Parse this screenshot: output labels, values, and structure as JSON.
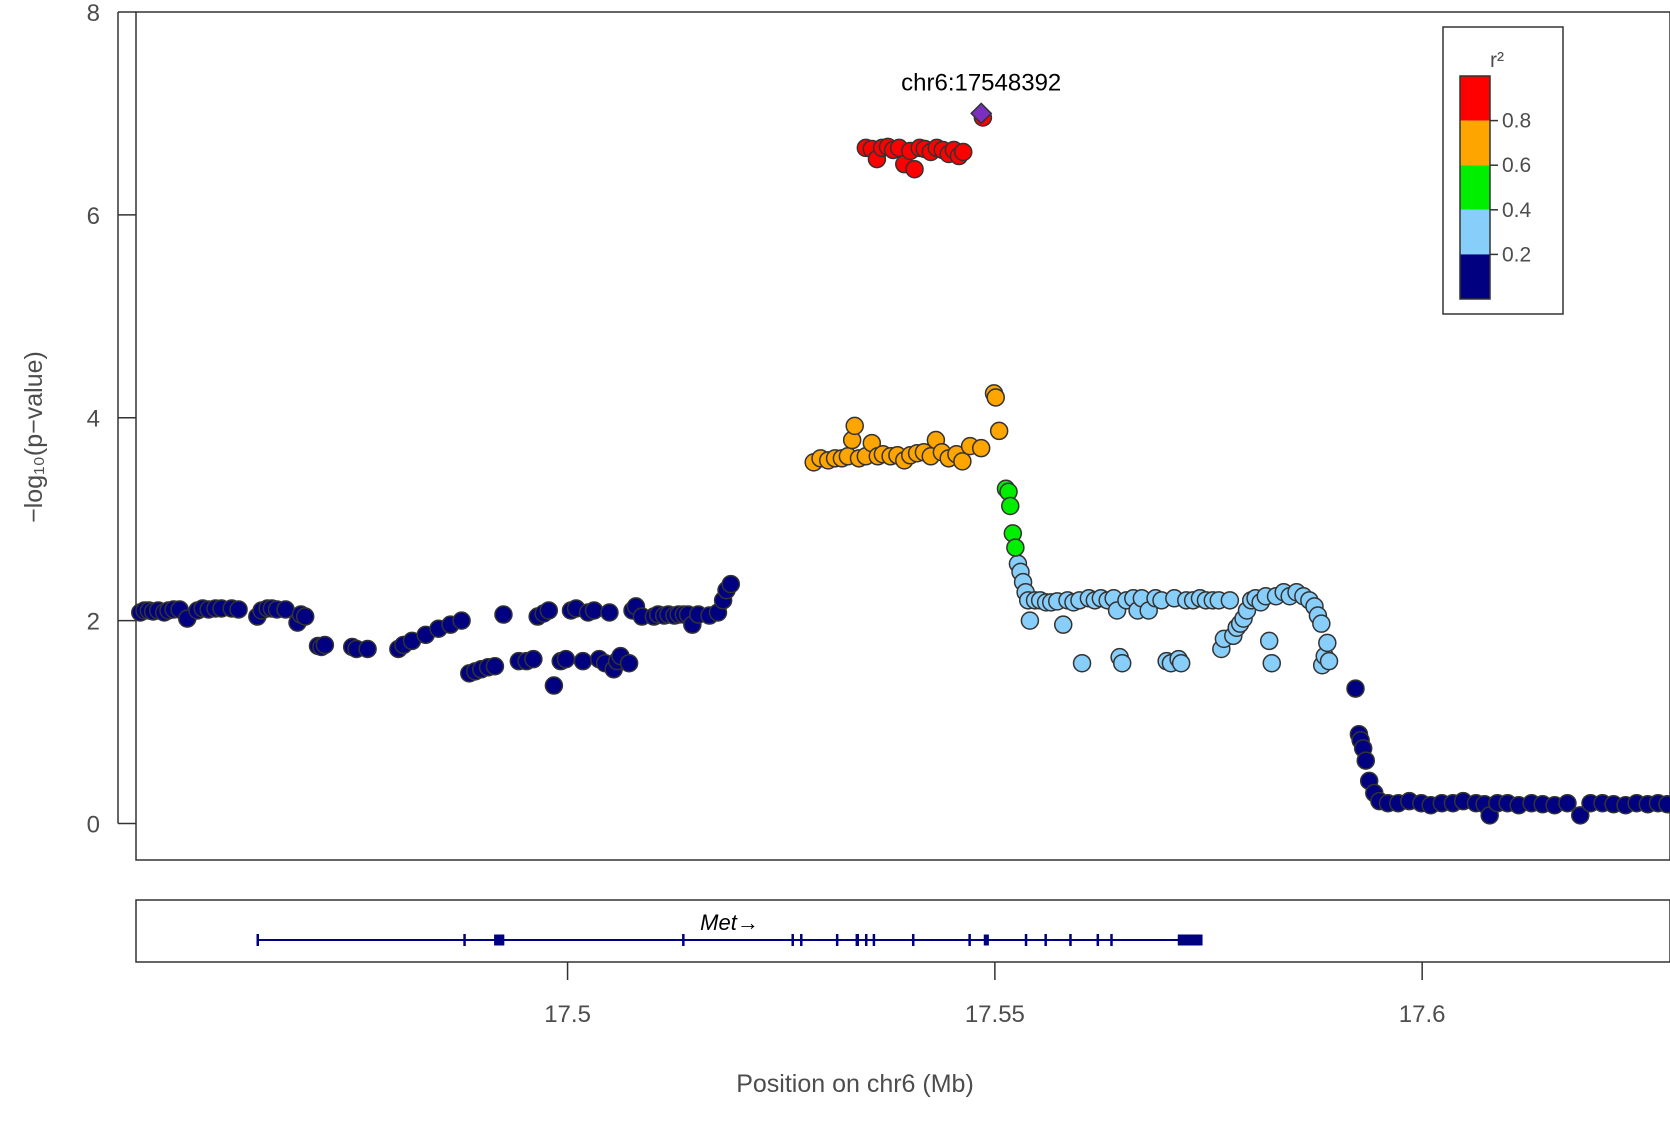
{
  "chart_data": {
    "type": "scatter",
    "xlabel": "Position on chr6 (Mb)",
    "ylabel": "−log₁₀(p−value)",
    "xlim": [
      17.4495,
      17.629
    ],
    "ylim": [
      -0.36,
      8.0
    ],
    "x_ticks": [
      {
        "value": 17.5,
        "label": "17.5"
      },
      {
        "value": 17.55,
        "label": "17.55"
      },
      {
        "value": 17.6,
        "label": "17.6"
      }
    ],
    "y_ticks": [
      {
        "value": 0,
        "label": "0"
      },
      {
        "value": 2,
        "label": "2"
      },
      {
        "value": 4,
        "label": "4"
      },
      {
        "value": 6,
        "label": "6"
      },
      {
        "value": 8,
        "label": "8"
      }
    ],
    "lead_snp": {
      "label": "chr6:17548392",
      "x": 17.5484,
      "y": 7.0,
      "color": "#7B2FBF"
    },
    "legend": {
      "title": "r²",
      "bins": [
        {
          "color": "#FF0000",
          "label": "0.8"
        },
        {
          "color": "#FFA500",
          "label": "0.6"
        },
        {
          "color": "#00EE00",
          "label": "0.4"
        },
        {
          "color": "#87CEFA",
          "label": "0.2"
        },
        {
          "color": "#000080",
          "label": ""
        }
      ]
    },
    "series": [
      {
        "name": "0.8",
        "color": "#FF0000",
        "points": [
          [
            17.5349,
            6.66
          ],
          [
            17.5356,
            6.65
          ],
          [
            17.5362,
            6.55
          ],
          [
            17.5368,
            6.66
          ],
          [
            17.5375,
            6.67
          ],
          [
            17.5381,
            6.64
          ],
          [
            17.5388,
            6.66
          ],
          [
            17.5394,
            6.5
          ],
          [
            17.5401,
            6.63
          ],
          [
            17.5406,
            6.45
          ],
          [
            17.5412,
            6.66
          ],
          [
            17.5418,
            6.65
          ],
          [
            17.5425,
            6.62
          ],
          [
            17.5432,
            6.66
          ],
          [
            17.5439,
            6.64
          ],
          [
            17.5446,
            6.6
          ],
          [
            17.5452,
            6.64
          ],
          [
            17.5458,
            6.58
          ],
          [
            17.5463,
            6.62
          ],
          [
            17.5486,
            6.96
          ]
        ]
      },
      {
        "name": "0.6",
        "color": "#FFA500",
        "points": [
          [
            17.5288,
            3.56
          ],
          [
            17.5296,
            3.6
          ],
          [
            17.5305,
            3.58
          ],
          [
            17.5313,
            3.6
          ],
          [
            17.5321,
            3.6
          ],
          [
            17.5328,
            3.62
          ],
          [
            17.5333,
            3.78
          ],
          [
            17.5336,
            3.92
          ],
          [
            17.5341,
            3.6
          ],
          [
            17.5349,
            3.62
          ],
          [
            17.5356,
            3.75
          ],
          [
            17.5363,
            3.62
          ],
          [
            17.5369,
            3.64
          ],
          [
            17.5378,
            3.62
          ],
          [
            17.5386,
            3.63
          ],
          [
            17.5394,
            3.58
          ],
          [
            17.5401,
            3.63
          ],
          [
            17.5409,
            3.65
          ],
          [
            17.5417,
            3.66
          ],
          [
            17.5425,
            3.62
          ],
          [
            17.5431,
            3.78
          ],
          [
            17.5438,
            3.66
          ],
          [
            17.5446,
            3.6
          ],
          [
            17.5455,
            3.64
          ],
          [
            17.5462,
            3.57
          ],
          [
            17.5471,
            3.72
          ],
          [
            17.5484,
            3.7
          ],
          [
            17.5499,
            4.24
          ],
          [
            17.5501,
            4.2
          ],
          [
            17.5505,
            3.87
          ]
        ]
      },
      {
        "name": "0.4",
        "color": "#00EE00",
        "points": [
          [
            17.5513,
            3.3
          ],
          [
            17.5516,
            3.27
          ],
          [
            17.5518,
            3.13
          ],
          [
            17.5521,
            2.86
          ],
          [
            17.5524,
            2.72
          ]
        ]
      },
      {
        "name": "0.2",
        "color": "#87CEFA",
        "points": [
          [
            17.5527,
            2.56
          ],
          [
            17.553,
            2.48
          ],
          [
            17.5533,
            2.38
          ],
          [
            17.5536,
            2.28
          ],
          [
            17.5539,
            2.2
          ],
          [
            17.5541,
            2.0
          ],
          [
            17.5547,
            2.2
          ],
          [
            17.5553,
            2.2
          ],
          [
            17.556,
            2.18
          ],
          [
            17.5566,
            2.18
          ],
          [
            17.5573,
            2.19
          ],
          [
            17.558,
            1.96
          ],
          [
            17.5585,
            2.2
          ],
          [
            17.5592,
            2.18
          ],
          [
            17.5599,
            2.2
          ],
          [
            17.5602,
            1.58
          ],
          [
            17.561,
            2.22
          ],
          [
            17.5617,
            2.2
          ],
          [
            17.5624,
            2.22
          ],
          [
            17.5632,
            2.2
          ],
          [
            17.5639,
            2.22
          ],
          [
            17.5643,
            2.1
          ],
          [
            17.5646,
            1.64
          ],
          [
            17.5649,
            1.58
          ],
          [
            17.5654,
            2.2
          ],
          [
            17.5662,
            2.22
          ],
          [
            17.5667,
            2.1
          ],
          [
            17.5672,
            2.22
          ],
          [
            17.568,
            2.1
          ],
          [
            17.5688,
            2.22
          ],
          [
            17.5695,
            2.2
          ],
          [
            17.5701,
            1.6
          ],
          [
            17.5706,
            1.58
          ],
          [
            17.571,
            2.22
          ],
          [
            17.5715,
            1.62
          ],
          [
            17.5718,
            1.58
          ],
          [
            17.5724,
            2.2
          ],
          [
            17.5732,
            2.2
          ],
          [
            17.574,
            2.22
          ],
          [
            17.5747,
            2.2
          ],
          [
            17.5755,
            2.2
          ],
          [
            17.5762,
            2.2
          ],
          [
            17.5765,
            1.72
          ],
          [
            17.5768,
            1.82
          ],
          [
            17.5775,
            2.2
          ],
          [
            17.5779,
            1.85
          ],
          [
            17.5783,
            1.93
          ],
          [
            17.5787,
            1.97
          ],
          [
            17.5791,
            2.02
          ],
          [
            17.5795,
            2.1
          ],
          [
            17.58,
            2.2
          ],
          [
            17.5805,
            2.22
          ],
          [
            17.5811,
            2.18
          ],
          [
            17.5817,
            2.24
          ],
          [
            17.5821,
            1.8
          ],
          [
            17.5824,
            1.58
          ],
          [
            17.5829,
            2.24
          ],
          [
            17.5838,
            2.28
          ],
          [
            17.5845,
            2.24
          ],
          [
            17.5853,
            2.28
          ],
          [
            17.5861,
            2.24
          ],
          [
            17.5868,
            2.2
          ],
          [
            17.5874,
            2.14
          ],
          [
            17.5878,
            2.05
          ],
          [
            17.5882,
            1.97
          ],
          [
            17.5883,
            1.56
          ],
          [
            17.5886,
            1.65
          ],
          [
            17.5889,
            1.78
          ],
          [
            17.5891,
            1.6
          ]
        ]
      },
      {
        "name": "0.2-",
        "color": "#000080",
        "points": [
          [
            17.45,
            2.08
          ],
          [
            17.4505,
            2.1
          ],
          [
            17.451,
            2.1
          ],
          [
            17.4515,
            2.09
          ],
          [
            17.4521,
            2.1
          ],
          [
            17.4528,
            2.08
          ],
          [
            17.4533,
            2.1
          ],
          [
            17.4539,
            2.11
          ],
          [
            17.4546,
            2.11
          ],
          [
            17.4555,
            2.02
          ],
          [
            17.4567,
            2.1
          ],
          [
            17.4573,
            2.12
          ],
          [
            17.458,
            2.11
          ],
          [
            17.4588,
            2.12
          ],
          [
            17.4595,
            2.12
          ],
          [
            17.4607,
            2.12
          ],
          [
            17.4615,
            2.11
          ],
          [
            17.4637,
            2.04
          ],
          [
            17.4642,
            2.1
          ],
          [
            17.4649,
            2.12
          ],
          [
            17.4654,
            2.12
          ],
          [
            17.466,
            2.11
          ],
          [
            17.467,
            2.11
          ],
          [
            17.4684,
            1.98
          ],
          [
            17.4688,
            2.06
          ],
          [
            17.4693,
            2.04
          ],
          [
            17.4708,
            1.75
          ],
          [
            17.4712,
            1.74
          ],
          [
            17.4716,
            1.76
          ],
          [
            17.4748,
            1.74
          ],
          [
            17.4753,
            1.72
          ],
          [
            17.4766,
            1.72
          ],
          [
            17.4802,
            1.72
          ],
          [
            17.4808,
            1.76
          ],
          [
            17.4818,
            1.8
          ],
          [
            17.4834,
            1.86
          ],
          [
            17.4849,
            1.92
          ],
          [
            17.4863,
            1.96
          ],
          [
            17.4876,
            2.0
          ],
          [
            17.4885,
            1.48
          ],
          [
            17.4892,
            1.5
          ],
          [
            17.4899,
            1.52
          ],
          [
            17.4907,
            1.54
          ],
          [
            17.4915,
            1.55
          ],
          [
            17.4925,
            2.06
          ],
          [
            17.4943,
            1.6
          ],
          [
            17.4952,
            1.6
          ],
          [
            17.496,
            1.62
          ],
          [
            17.4965,
            2.04
          ],
          [
            17.4972,
            2.07
          ],
          [
            17.4978,
            2.1
          ],
          [
            17.4984,
            1.36
          ],
          [
            17.4992,
            1.6
          ],
          [
            17.4998,
            1.62
          ],
          [
            17.5004,
            2.1
          ],
          [
            17.501,
            2.12
          ],
          [
            17.5018,
            1.6
          ],
          [
            17.5024,
            2.08
          ],
          [
            17.5031,
            2.1
          ],
          [
            17.5037,
            1.62
          ],
          [
            17.5044,
            1.58
          ],
          [
            17.5049,
            2.08
          ],
          [
            17.5054,
            1.52
          ],
          [
            17.5058,
            1.6
          ],
          [
            17.5062,
            1.65
          ],
          [
            17.5072,
            1.58
          ],
          [
            17.5076,
            2.1
          ],
          [
            17.508,
            2.14
          ],
          [
            17.5087,
            2.04
          ],
          [
            17.5101,
            2.04
          ],
          [
            17.5106,
            2.06
          ],
          [
            17.5113,
            2.05
          ],
          [
            17.5118,
            2.06
          ],
          [
            17.5125,
            2.05
          ],
          [
            17.513,
            2.06
          ],
          [
            17.5136,
            2.06
          ],
          [
            17.5141,
            2.06
          ],
          [
            17.5146,
            1.96
          ],
          [
            17.5153,
            2.06
          ],
          [
            17.5166,
            2.05
          ],
          [
            17.5176,
            2.08
          ],
          [
            17.5182,
            2.2
          ],
          [
            17.5186,
            2.3
          ],
          [
            17.5191,
            2.36
          ],
          [
            17.5922,
            1.33
          ],
          [
            17.5926,
            0.88
          ],
          [
            17.5928,
            0.82
          ],
          [
            17.5931,
            0.74
          ],
          [
            17.5934,
            0.62
          ],
          [
            17.5938,
            0.42
          ],
          [
            17.5944,
            0.3
          ],
          [
            17.595,
            0.22
          ],
          [
            17.596,
            0.2
          ],
          [
            17.5972,
            0.2
          ],
          [
            17.5985,
            0.22
          ],
          [
            17.5999,
            0.2
          ],
          [
            17.601,
            0.18
          ],
          [
            17.6023,
            0.2
          ],
          [
            17.6036,
            0.2
          ],
          [
            17.6048,
            0.22
          ],
          [
            17.6063,
            0.2
          ],
          [
            17.6073,
            0.19
          ],
          [
            17.6079,
            0.08
          ],
          [
            17.6088,
            0.2
          ],
          [
            17.61,
            0.2
          ],
          [
            17.6113,
            0.18
          ],
          [
            17.6128,
            0.2
          ],
          [
            17.6141,
            0.19
          ],
          [
            17.6155,
            0.18
          ],
          [
            17.617,
            0.2
          ],
          [
            17.6185,
            0.08
          ],
          [
            17.6197,
            0.2
          ],
          [
            17.6211,
            0.2
          ],
          [
            17.6224,
            0.19
          ],
          [
            17.6238,
            0.18
          ],
          [
            17.6251,
            0.2
          ],
          [
            17.6264,
            0.19
          ],
          [
            17.6276,
            0.2
          ],
          [
            17.6287,
            0.19
          ]
        ]
      }
    ],
    "gene_track": {
      "gene": "Met",
      "strand_arrow": "→",
      "start": 17.4636,
      "end": 17.5743,
      "exons": [
        [
          17.4636,
          17.4638
        ],
        [
          17.4878,
          17.488
        ],
        [
          17.4914,
          17.4926
        ],
        [
          17.5134,
          17.5136
        ],
        [
          17.5262,
          17.5264
        ],
        [
          17.5272,
          17.5274
        ],
        [
          17.5314,
          17.5316
        ],
        [
          17.5337,
          17.5341
        ],
        [
          17.5348,
          17.535
        ],
        [
          17.5357,
          17.5359
        ],
        [
          17.5403,
          17.5405
        ],
        [
          17.5469,
          17.5471
        ],
        [
          17.5487,
          17.5493
        ],
        [
          17.5535,
          17.5537
        ],
        [
          17.5558,
          17.556
        ],
        [
          17.5587,
          17.5589
        ],
        [
          17.5619,
          17.5621
        ],
        [
          17.5635,
          17.5637
        ],
        [
          17.5714,
          17.5743
        ]
      ]
    }
  }
}
